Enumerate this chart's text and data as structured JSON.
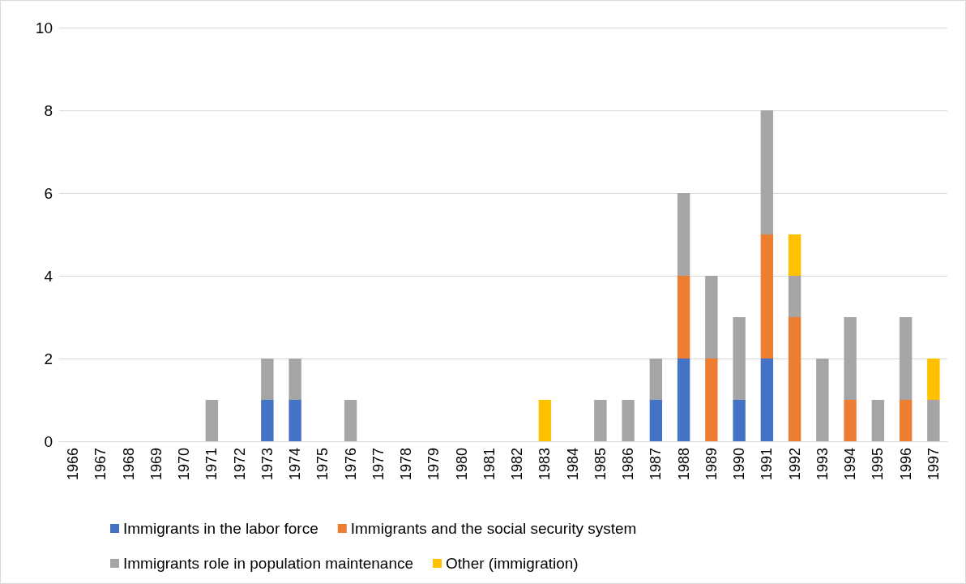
{
  "chart_data": {
    "type": "bar",
    "stacked": true,
    "categories": [
      "1966",
      "1967",
      "1968",
      "1969",
      "1970",
      "1971",
      "1972",
      "1973",
      "1974",
      "1975",
      "1976",
      "1977",
      "1978",
      "1979",
      "1980",
      "1981",
      "1982",
      "1983",
      "1984",
      "1985",
      "1986",
      "1987",
      "1988",
      "1989",
      "1990",
      "1991",
      "1992",
      "1993",
      "1994",
      "1995",
      "1996",
      "1997"
    ],
    "series": [
      {
        "name": "Immigrants in the labor force",
        "color": "#4472c4",
        "values": [
          0,
          0,
          0,
          0,
          0,
          0,
          0,
          1,
          1,
          0,
          0,
          0,
          0,
          0,
          0,
          0,
          0,
          0,
          0,
          0,
          0,
          1,
          2,
          0,
          1,
          2,
          0,
          0,
          0,
          0,
          0,
          0
        ]
      },
      {
        "name": "Immigrants and the social security system",
        "color": "#ed7d31",
        "values": [
          0,
          0,
          0,
          0,
          0,
          0,
          0,
          0,
          0,
          0,
          0,
          0,
          0,
          0,
          0,
          0,
          0,
          0,
          0,
          0,
          0,
          0,
          2,
          2,
          0,
          3,
          3,
          0,
          1,
          0,
          1,
          0
        ]
      },
      {
        "name": "Immigrants role in population maintenance",
        "color": "#a5a5a5",
        "values": [
          0,
          0,
          0,
          0,
          0,
          1,
          0,
          1,
          1,
          0,
          1,
          0,
          0,
          0,
          0,
          0,
          0,
          0,
          0,
          1,
          1,
          1,
          2,
          2,
          2,
          3,
          1,
          2,
          2,
          1,
          2,
          1
        ]
      },
      {
        "name": "Other (immigration)",
        "color": "#ffc000",
        "values": [
          0,
          0,
          0,
          0,
          0,
          0,
          0,
          0,
          0,
          0,
          0,
          0,
          0,
          0,
          0,
          0,
          0,
          1,
          0,
          0,
          0,
          0,
          0,
          0,
          0,
          0,
          1,
          0,
          0,
          0,
          0,
          1
        ]
      }
    ],
    "ylim": [
      0,
      10
    ],
    "yticks": [
      0,
      2,
      4,
      6,
      8,
      10
    ],
    "grid": "y",
    "legend": "bottom"
  }
}
